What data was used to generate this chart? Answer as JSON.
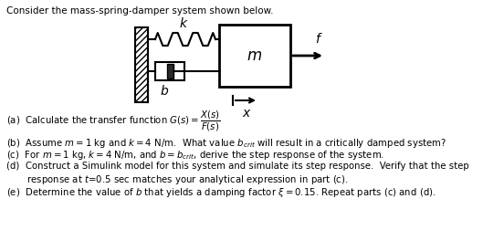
{
  "title": "Consider the mass-spring-damper system shown below.",
  "q_a": "(a)  Calculate the transfer function $G(s) = \\dfrac{X(s)}{F(s)}$",
  "q_b": "(b)  Assume $m = 1$ kg and $k = 4$ N/m.  What value $b_{crit}$ will result in a critically damped system?",
  "q_c": "(c)  For $m = 1$ kg, $k = 4$ N/m, and $b = b_{crit}$, derive the step response of the system.",
  "q_d1": "(d)  Construct a Simulink model for this system and simulate its step response.  Verify that the step",
  "q_d2": "       response at $t$=0.5 sec matches your analytical expression in part (c).",
  "q_e": "(e)  Determine the value of $b$ that yields a damping factor $\\xi = 0.15$. Repeat parts (c) and (d).",
  "wall_hatch": "/////",
  "bg": "#ffffff",
  "lw": 1.5
}
